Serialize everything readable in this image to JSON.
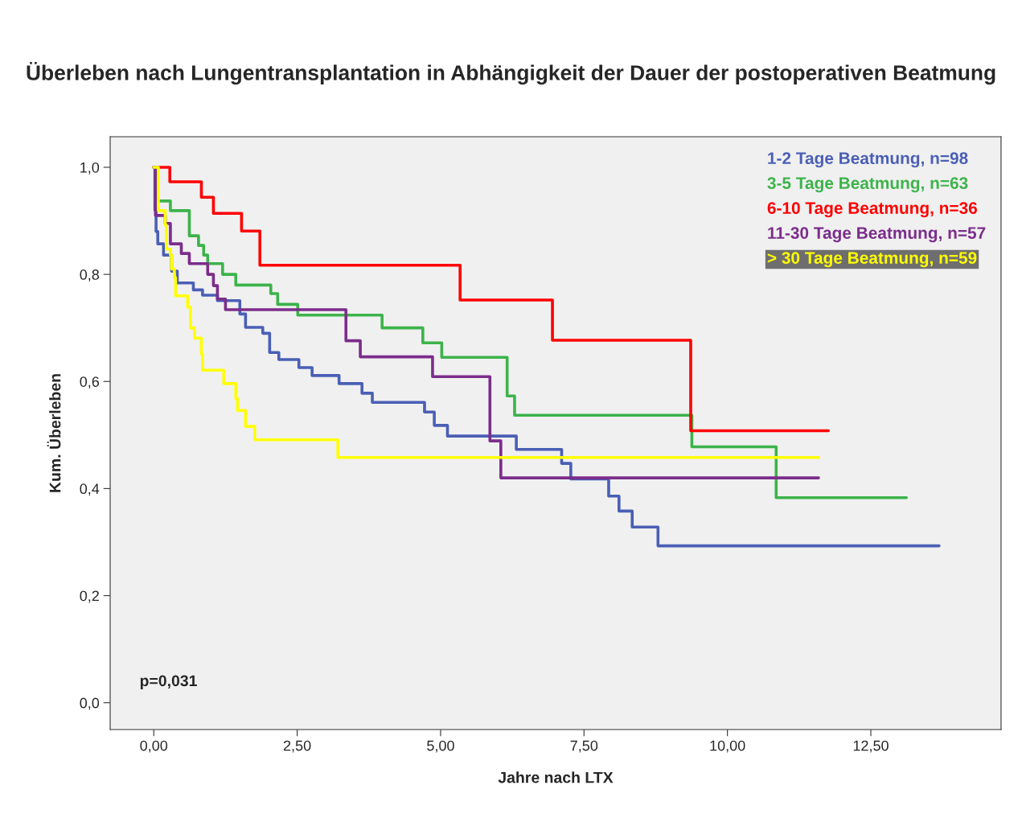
{
  "chart_data": {
    "type": "step",
    "title": "Überleben nach Lungentransplantation in Abhängigkeit der Dauer der postoperativen Beatmung",
    "xlabel": "Jahre nach LTX",
    "ylabel": "Kum. Überleben",
    "series": [
      {
        "name": "1-2 Tage Beatmung, n=98",
        "color": "#4a5fb5",
        "x": [
          0,
          0.02,
          0.04,
          0.07,
          0.17,
          0.31,
          0.41,
          0.69,
          0.85,
          1.11,
          1.5,
          1.6,
          1.9,
          2.02,
          2.18,
          2.53,
          2.76,
          3.23,
          3.63,
          3.81,
          4.72,
          4.89,
          5.12,
          6.32,
          7.11,
          7.27,
          7.93,
          8.11,
          8.34,
          8.79,
          13.69
        ],
        "values": [
          1.0,
          0.92,
          0.88,
          0.857,
          0.836,
          0.806,
          0.784,
          0.771,
          0.761,
          0.751,
          0.726,
          0.701,
          0.69,
          0.654,
          0.641,
          0.626,
          0.611,
          0.596,
          0.578,
          0.561,
          0.543,
          0.518,
          0.498,
          0.473,
          0.447,
          0.418,
          0.386,
          0.358,
          0.328,
          0.293,
          0.293
        ]
      },
      {
        "name": "3-5 Tage Beatmung, n=63",
        "color": "#3cb34a",
        "x": [
          0,
          0.04,
          0.29,
          0.62,
          0.78,
          0.87,
          0.94,
          1.2,
          1.43,
          2.04,
          2.16,
          2.51,
          3.98,
          4.69,
          5.02,
          6.16,
          6.29,
          9.38,
          10.85,
          13.12
        ],
        "values": [
          1.0,
          0.937,
          0.919,
          0.872,
          0.854,
          0.836,
          0.82,
          0.8,
          0.78,
          0.764,
          0.744,
          0.724,
          0.7,
          0.672,
          0.645,
          0.573,
          0.537,
          0.478,
          0.383,
          0.383
        ]
      },
      {
        "name": "6-10 Tage Beatmung, n=36",
        "color": "#ff0000",
        "x": [
          0,
          0.28,
          0.83,
          1.04,
          1.53,
          1.85,
          5.34,
          6.95,
          9.36,
          11.76
        ],
        "values": [
          1.0,
          0.973,
          0.944,
          0.914,
          0.881,
          0.817,
          0.752,
          0.677,
          0.508,
          0.508
        ]
      },
      {
        "name": "11-30 Tage Beatmung, n=57",
        "color": "#7b2d8b",
        "x": [
          0,
          0.03,
          0.2,
          0.29,
          0.48,
          0.62,
          0.94,
          1.04,
          1.11,
          1.25,
          3.35,
          3.6,
          4.86,
          5.86,
          6.05,
          11.59
        ],
        "values": [
          1.0,
          0.91,
          0.895,
          0.857,
          0.839,
          0.82,
          0.8,
          0.779,
          0.754,
          0.734,
          0.676,
          0.646,
          0.609,
          0.489,
          0.42,
          0.42
        ]
      },
      {
        "name": "> 30 Tage Beatmung, n=59",
        "color": "#ffff00",
        "x": [
          0,
          0.08,
          0.2,
          0.22,
          0.29,
          0.31,
          0.36,
          0.38,
          0.59,
          0.64,
          0.71,
          0.83,
          0.85,
          1.22,
          1.43,
          1.46,
          1.6,
          1.76,
          3.21,
          11.59
        ],
        "values": [
          1.0,
          0.919,
          0.892,
          0.847,
          0.836,
          0.81,
          0.794,
          0.76,
          0.739,
          0.7,
          0.681,
          0.651,
          0.621,
          0.596,
          0.568,
          0.546,
          0.516,
          0.491,
          0.458,
          0.458
        ]
      }
    ],
    "xlim": [
      -0.76,
      14.77
    ],
    "ylim": [
      -0.05,
      1.057
    ],
    "xticks": [
      {
        "value": 0,
        "label": "0,00"
      },
      {
        "value": 2.5,
        "label": "2,50"
      },
      {
        "value": 5,
        "label": "5,00"
      },
      {
        "value": 7.5,
        "label": "7,50"
      },
      {
        "value": 10,
        "label": "10,00"
      },
      {
        "value": 12.5,
        "label": "12,50"
      }
    ],
    "yticks": [
      {
        "value": 0,
        "label": "0,0"
      },
      {
        "value": 0.2,
        "label": "0,2"
      },
      {
        "value": 0.4,
        "label": "0,4"
      },
      {
        "value": 0.6,
        "label": "0,6"
      },
      {
        "value": 0.8,
        "label": "0,8"
      },
      {
        "value": 1.0,
        "label": "1,0"
      }
    ],
    "annotations": [
      "p=0,031"
    ],
    "legend": "top right",
    "grid": false,
    "marker": "none",
    "line_style": "solid"
  }
}
